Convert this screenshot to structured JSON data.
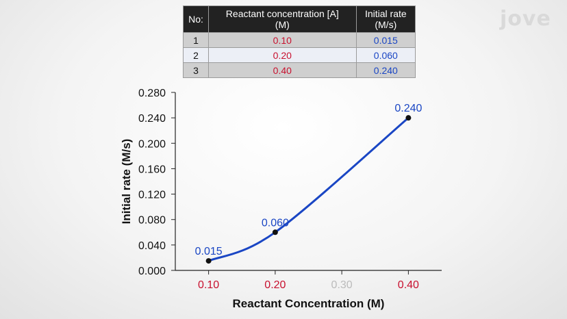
{
  "logo": "jove",
  "table": {
    "headers": [
      "No:",
      "Reactant concentration [A]\n(M)",
      "Initial rate\n(M/s)"
    ],
    "rows": [
      {
        "no": "1",
        "conc": "0.10",
        "rate": "0.015"
      },
      {
        "no": "2",
        "conc": "0.20",
        "rate": "0.060"
      },
      {
        "no": "3",
        "conc": "0.40",
        "rate": "0.240"
      }
    ]
  },
  "chart_data": {
    "type": "line",
    "title": "",
    "xlabel": "Reactant Concentration (M)",
    "ylabel": "Initial rate (M/s)",
    "xlim": [
      0.05,
      0.45
    ],
    "ylim": [
      0,
      0.28
    ],
    "x_ticks": [
      "0.10",
      "0.20",
      "0.30",
      "0.40"
    ],
    "x_tick_values": [
      0.1,
      0.2,
      0.3,
      0.4
    ],
    "x_tick_colors": [
      "#c8102e",
      "#c8102e",
      "#bbbbbb",
      "#c8102e"
    ],
    "y_ticks": [
      "0.000",
      "0.040",
      "0.080",
      "0.120",
      "0.160",
      "0.200",
      "0.240",
      "0.280"
    ],
    "y_tick_values": [
      0,
      0.04,
      0.08,
      0.12,
      0.16,
      0.2,
      0.24,
      0.28
    ],
    "series": [
      {
        "values": [
          0.015,
          0.06,
          0.24
        ],
        "x": [
          0.1,
          0.2,
          0.4
        ],
        "labels": [
          "0.015",
          "0.060",
          "0.240"
        ],
        "color": "#1a46c4"
      }
    ],
    "grid": false
  }
}
